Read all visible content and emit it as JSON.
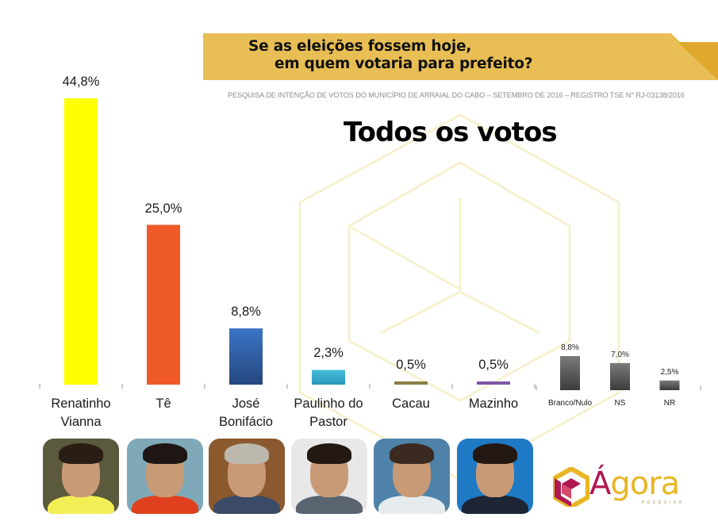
{
  "header": {
    "question_line1": "Se as eleições  fossem hoje,",
    "question_line2": "em quem votaria para prefeito?",
    "subtitle": "PESQUISA DE INTENÇÃO DE VOTOS DO MUNICÍPIO DE ARRAIAL DO CABO – SETEMBRO DE 2016 – REGISTRO TSE N° RJ-03138/2016",
    "banner_color": "#E8BE55",
    "banner_tab_color": "#E0A92E"
  },
  "chart_data": {
    "type": "bar",
    "title": "Todos os votos",
    "xlabel": "",
    "ylabel": "",
    "ylim": [
      0,
      44.8
    ],
    "grid": false,
    "legend": "none",
    "candidates": {
      "categories": [
        "Renatinho\nVianna",
        "Tê",
        "José\nBonifácio",
        "Paulinho do\nPastor",
        "Cacau",
        "Mazinho"
      ],
      "values": [
        44.8,
        25.0,
        8.8,
        2.3,
        0.5,
        0.5
      ],
      "labels": [
        "44,8%",
        "25,0%",
        "8,8%",
        "2,3%",
        "0,5%",
        "0,5%"
      ],
      "colors": [
        "#FFFF00",
        "#F05A28",
        "#3469B0",
        "#35AFD0",
        "#8A7E45",
        "#7B58A8"
      ]
    },
    "others": {
      "categories": [
        "Branco/Nulo",
        "NS",
        "NR"
      ],
      "values": [
        8.8,
        7.0,
        2.5
      ],
      "labels": [
        "8,8%",
        "7,0%",
        "2,5%"
      ],
      "colors": [
        "#555555",
        "#555555",
        "#555555"
      ]
    }
  },
  "photos": [
    {
      "name": "Renatinho Vianna",
      "bg": "#5b5a3c",
      "hair": "#2a1d14",
      "shirt": "#f2ee55"
    },
    {
      "name": "Tê",
      "bg": "#7fa9b8",
      "hair": "#1e1612",
      "shirt": "#e0401e"
    },
    {
      "name": "José Bonifácio",
      "bg": "#8a5a2e",
      "hair": "#bdb8ad",
      "shirt": "#3b4a66"
    },
    {
      "name": "Paulinho do Pastor",
      "bg": "#e8e8e8",
      "hair": "#231812",
      "shirt": "#5a6470"
    },
    {
      "name": "Cacau",
      "bg": "#4f82a8",
      "hair": "#3a2a20",
      "shirt": "#e6ecee"
    },
    {
      "name": "Mazinho",
      "bg": "#1e7ac4",
      "hair": "#231711",
      "shirt": "#1d2535"
    }
  ],
  "logo": {
    "text_accent": "Á",
    "text_rest": "gora",
    "subtext": "PESQUISA"
  }
}
